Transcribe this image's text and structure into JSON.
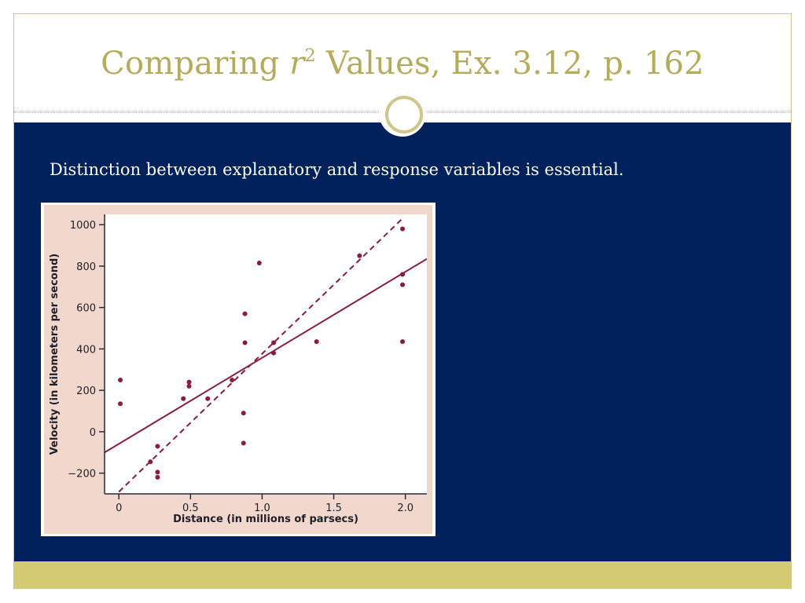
{
  "slide": {
    "title_before": "Comparing ",
    "title_r": "r",
    "title_sup": "2",
    "title_after": " Values, Ex. 3.12, p. 162",
    "body_text": "Distinction between explanatory and response variables is essential."
  },
  "colors": {
    "title": "#b5ab5a",
    "content_background": "#00215c",
    "accent_band": "#d3ca73",
    "chart_background": "#f2d8cc",
    "data_color": "#8b1a3c"
  },
  "chart_data": {
    "type": "scatter",
    "xlabel": "Distance (in millions of parsecs)",
    "ylabel": "Velocity (in kilometers per second)",
    "xlim": [
      -0.1,
      2.15
    ],
    "ylim": [
      -300,
      1050
    ],
    "x_ticks": [
      "0",
      "0.5",
      "1.0",
      "1.5",
      "2.0"
    ],
    "x_tick_values": [
      0,
      0.5,
      1.0,
      1.5,
      2.0
    ],
    "y_ticks": [
      "1000",
      "800",
      "600",
      "400",
      "200",
      "0",
      "−200"
    ],
    "y_tick_values": [
      1000,
      800,
      600,
      400,
      200,
      0,
      -200
    ],
    "points": [
      {
        "x": 0.01,
        "y": 250
      },
      {
        "x": 0.01,
        "y": 135
      },
      {
        "x": 0.22,
        "y": -145
      },
      {
        "x": 0.27,
        "y": -70
      },
      {
        "x": 0.27,
        "y": -195
      },
      {
        "x": 0.27,
        "y": -220
      },
      {
        "x": 0.45,
        "y": 160
      },
      {
        "x": 0.49,
        "y": 240
      },
      {
        "x": 0.49,
        "y": 220
      },
      {
        "x": 0.62,
        "y": 160
      },
      {
        "x": 0.79,
        "y": 250
      },
      {
        "x": 0.87,
        "y": 90
      },
      {
        "x": 0.87,
        "y": -55
      },
      {
        "x": 0.88,
        "y": 570
      },
      {
        "x": 0.88,
        "y": 430
      },
      {
        "x": 0.98,
        "y": 815
      },
      {
        "x": 1.08,
        "y": 430
      },
      {
        "x": 1.08,
        "y": 380
      },
      {
        "x": 1.38,
        "y": 435
      },
      {
        "x": 1.68,
        "y": 850
      },
      {
        "x": 1.98,
        "y": 980
      },
      {
        "x": 1.98,
        "y": 760
      },
      {
        "x": 1.98,
        "y": 710
      },
      {
        "x": 1.98,
        "y": 435
      }
    ],
    "lines": [
      {
        "style": "solid",
        "from": [
          -0.1,
          -100
        ],
        "to": [
          2.15,
          835
        ]
      },
      {
        "style": "dashed",
        "from": [
          0.0,
          -290
        ],
        "to": [
          1.98,
          1030
        ]
      }
    ],
    "grid": false
  }
}
